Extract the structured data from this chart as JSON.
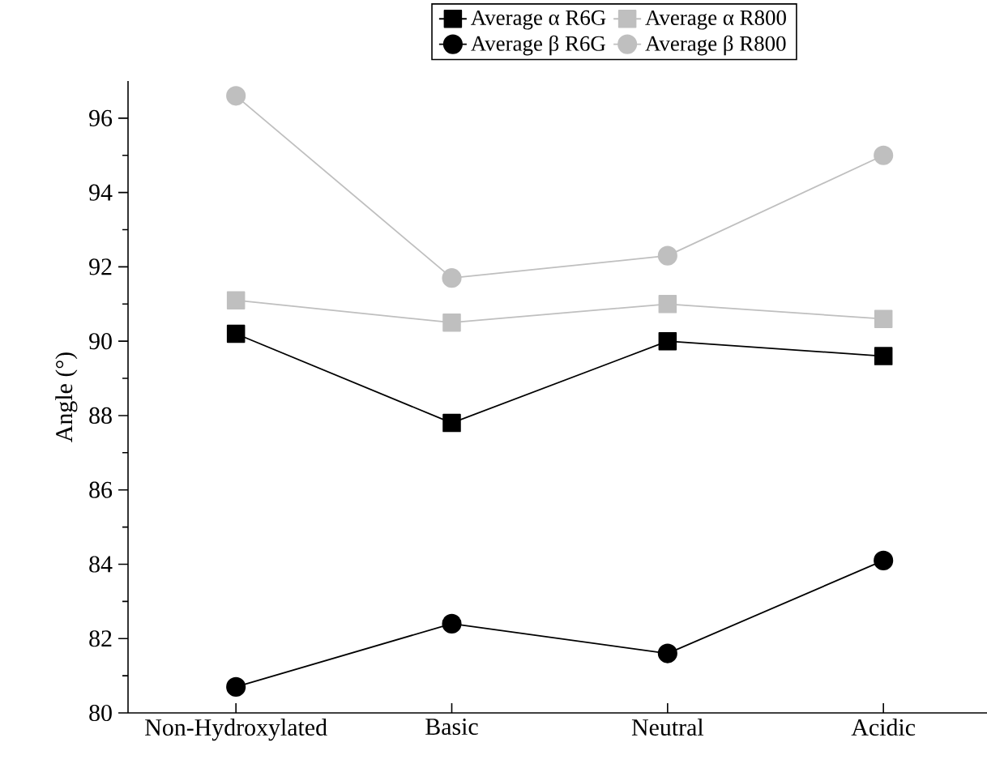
{
  "chart_data": {
    "type": "line",
    "ylabel": "Angle (°)",
    "categories": [
      "Non-Hydroxylated",
      "Basic",
      "Neutral",
      "Acidic"
    ],
    "ylim": [
      80,
      97
    ],
    "yticks": [
      80,
      82,
      84,
      86,
      88,
      90,
      92,
      94,
      96
    ],
    "legend": "top",
    "grid": false,
    "line_style": "solid",
    "series": [
      {
        "name": "Average α R6G",
        "color": "#000000",
        "marker": "square",
        "values": [
          90.2,
          87.8,
          90.0,
          89.6
        ]
      },
      {
        "name": "Average α R800",
        "color": "#bfbfbf",
        "marker": "square",
        "values": [
          91.1,
          90.5,
          91.0,
          90.6
        ]
      },
      {
        "name": "Average β R6G",
        "color": "#000000",
        "marker": "circle",
        "values": [
          80.7,
          82.4,
          81.6,
          84.1
        ]
      },
      {
        "name": "Average β R800",
        "color": "#bfbfbf",
        "marker": "circle",
        "values": [
          96.6,
          91.7,
          92.3,
          95.0
        ]
      }
    ]
  }
}
